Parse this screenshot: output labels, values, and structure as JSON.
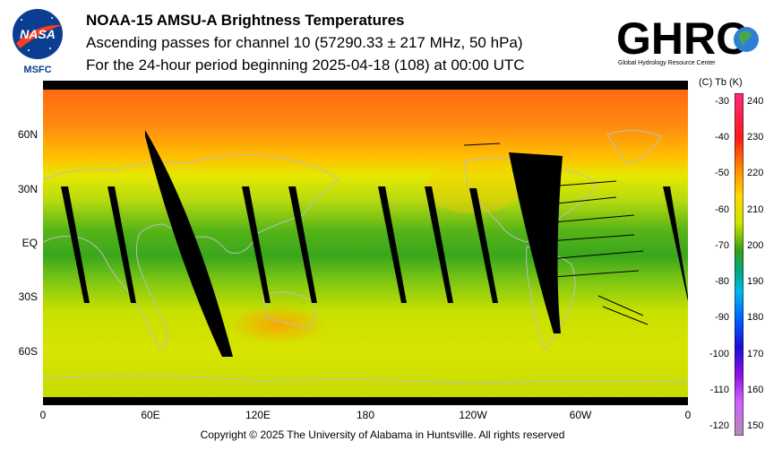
{
  "header": {
    "title": "NOAA-15 AMSU-A Brightness Temperatures",
    "subtitle": "Ascending passes for channel 10 (57290.33 ± 217 MHz, 50 hPa)",
    "period": "For the 24-hour period beginning 2025-04-18 (108) at 00:00 UTC"
  },
  "logos": {
    "nasa_text": "NASA",
    "nasa_center": "MSFC",
    "ghrc_text": "GHRC",
    "ghrc_caption": "Global Hydrology Resource Center"
  },
  "map": {
    "lat_labels": [
      "60N",
      "30N",
      "EQ",
      "30S",
      "60S"
    ],
    "lat_values": [
      60,
      30,
      0,
      -30,
      -60
    ],
    "lon_labels": [
      "0",
      "60E",
      "120E",
      "180",
      "120W",
      "60W",
      "0"
    ],
    "lon_values": [
      0,
      60,
      120,
      180,
      240,
      300,
      360
    ],
    "colors": {
      "cold_low": "#22a020",
      "mid": "#dde800",
      "warm_high": "#ff4a10",
      "swath_gap": "#000000",
      "coast": "#bdbdbd"
    }
  },
  "colorbar": {
    "header": "(C)  Tb  (K)",
    "celsius_ticks": [
      "-30",
      "-40",
      "-50",
      "-60",
      "-70",
      "-80",
      "-90",
      "-100",
      "-110",
      "-120"
    ],
    "kelvin_ticks": [
      "240",
      "230",
      "220",
      "210",
      "200",
      "190",
      "180",
      "170",
      "160",
      "150"
    ]
  },
  "footer": {
    "copyright": "Copyright © 2025 The University of Alabama in Huntsville.  All rights reserved"
  }
}
